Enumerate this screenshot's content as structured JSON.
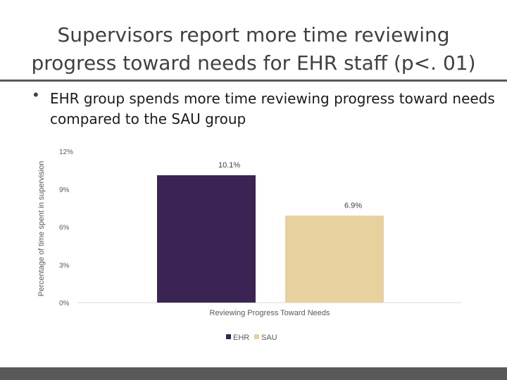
{
  "slide": {
    "title_line1": "Supervisors report more time reviewing",
    "title_line2": "progress toward needs for EHR staff (p<. 01)",
    "bullet": "EHR group spends more time reviewing progress toward needs compared to the SAU group"
  },
  "chart_data": {
    "type": "bar",
    "title": "",
    "xlabel": "Reviewing Progress Toward Needs",
    "ylabel": "Percentage of time spent in supervision",
    "categories": [
      "Reviewing Progress Toward Needs"
    ],
    "series": [
      {
        "name": "EHR",
        "values": [
          10.1
        ],
        "label": "10.1%",
        "color": "#3b2454"
      },
      {
        "name": "SAU",
        "values": [
          6.9
        ],
        "label": "6.9%",
        "color": "#e6d19f"
      }
    ],
    "ylim": [
      0,
      12
    ],
    "yticks": [
      {
        "value": 0,
        "label": "0%"
      },
      {
        "value": 3,
        "label": "3%"
      },
      {
        "value": 6,
        "label": "6%"
      },
      {
        "value": 9,
        "label": "9%"
      },
      {
        "value": 12,
        "label": "12%"
      }
    ],
    "grid": false,
    "legend_position": "bottom"
  }
}
